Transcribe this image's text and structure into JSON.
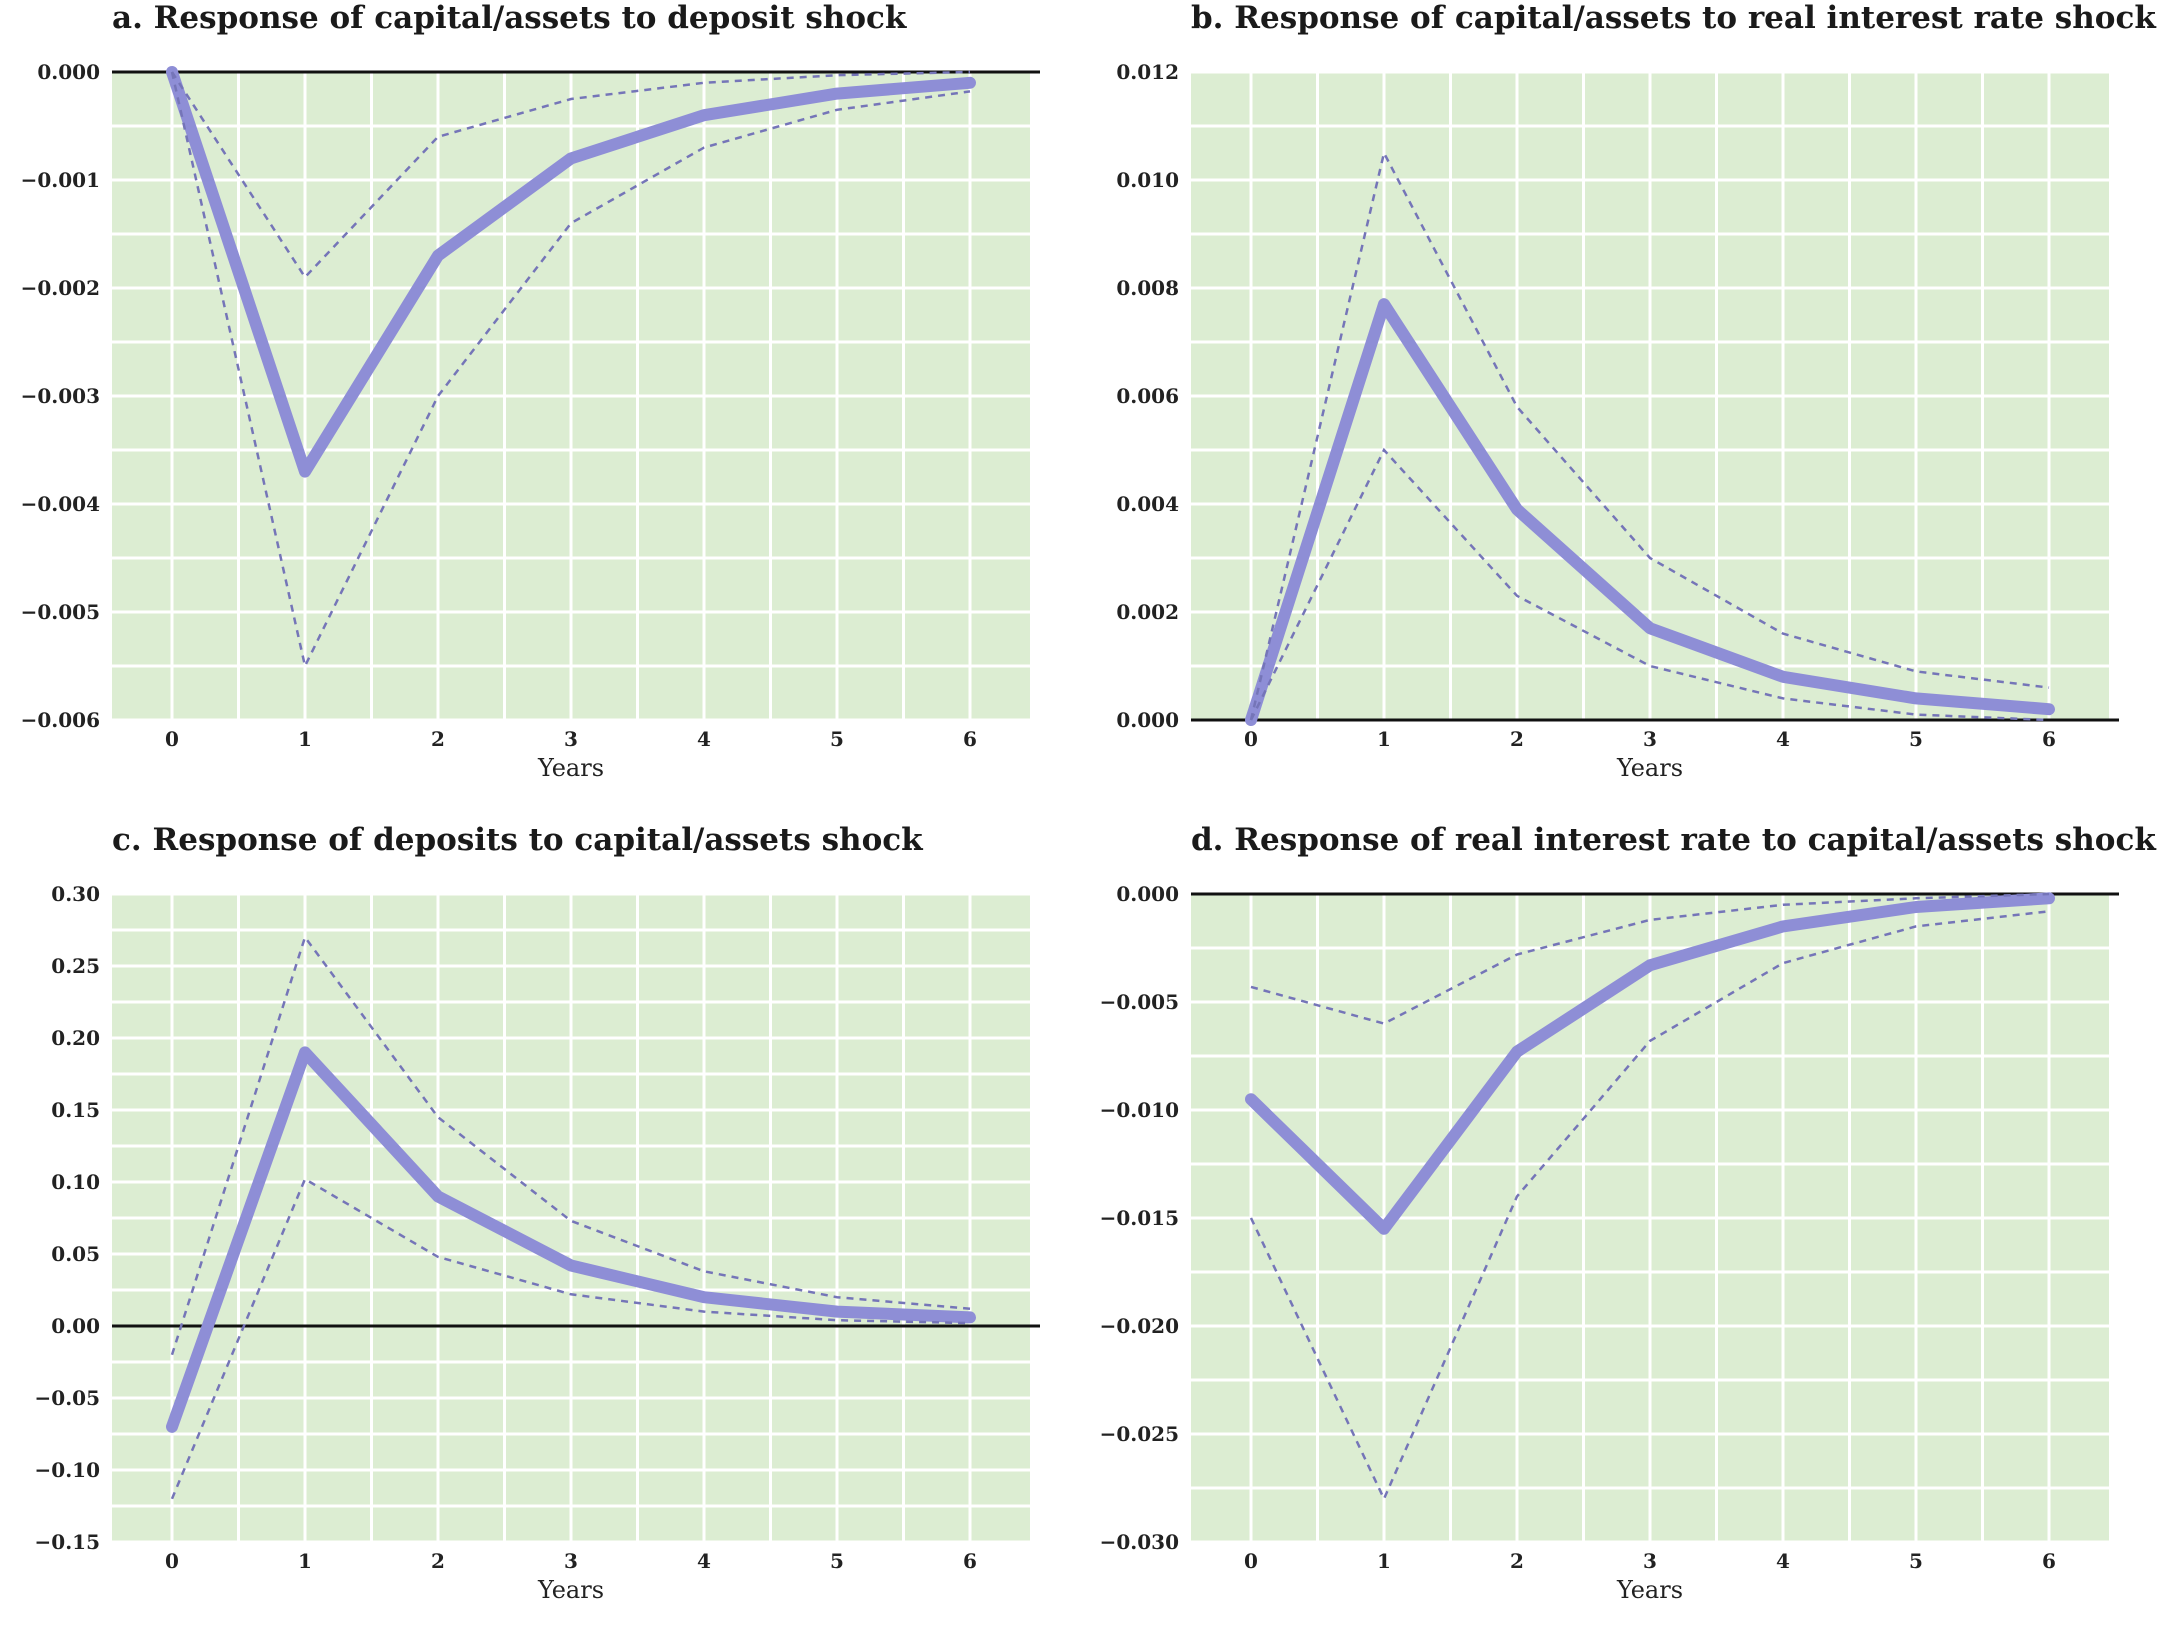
{
  "chart_data": [
    {
      "type": "line",
      "title": "a. Response of capital/assets to deposit shock",
      "xlabel": "Years",
      "ylabel": "",
      "x": [
        0,
        1,
        2,
        3,
        4,
        5,
        6
      ],
      "xticks": [
        "0",
        "1",
        "2",
        "3",
        "4",
        "5",
        "6"
      ],
      "ylim": [
        -0.006,
        0.0
      ],
      "yticks": [
        "0.000",
        "-0.001",
        "-0.002",
        "-0.003",
        "-0.004",
        "-0.005",
        "-0.006"
      ],
      "zero_line": true,
      "series": [
        {
          "role": "response",
          "values": [
            0.0,
            -0.0037,
            -0.0017,
            -0.0008,
            -0.0004,
            -0.0002,
            -0.0001
          ]
        },
        {
          "role": "upper_band",
          "values": [
            0.0,
            -0.0019,
            -0.0006,
            -0.00025,
            -0.0001,
            -3e-05,
            0.0
          ]
        },
        {
          "role": "lower_band",
          "values": [
            0.0,
            -0.0055,
            -0.003,
            -0.0014,
            -0.0007,
            -0.00035,
            -0.00018
          ]
        }
      ]
    },
    {
      "type": "line",
      "title": "b. Response of capital/assets to real interest rate shock",
      "xlabel": "Years",
      "ylabel": "",
      "x": [
        0,
        1,
        2,
        3,
        4,
        5,
        6
      ],
      "xticks": [
        "0",
        "1",
        "2",
        "3",
        "4",
        "5",
        "6"
      ],
      "ylim": [
        0.0,
        0.012
      ],
      "yticks": [
        "0.012",
        "0.010",
        "0.008",
        "0.006",
        "0.004",
        "0.002",
        "0.000"
      ],
      "zero_line": true,
      "series": [
        {
          "role": "response",
          "values": [
            0.0,
            0.0077,
            0.0039,
            0.0017,
            0.0008,
            0.0004,
            0.0002
          ]
        },
        {
          "role": "upper_band",
          "values": [
            0.0,
            0.0105,
            0.0058,
            0.003,
            0.0016,
            0.0009,
            0.0006
          ]
        },
        {
          "role": "lower_band",
          "values": [
            0.0,
            0.005,
            0.0023,
            0.001,
            0.0004,
            0.0001,
            0.0
          ]
        }
      ]
    },
    {
      "type": "line",
      "title": "c. Response of deposits to capital/assets shock",
      "xlabel": "Years",
      "ylabel": "",
      "x": [
        0,
        1,
        2,
        3,
        4,
        5,
        6
      ],
      "xticks": [
        "0",
        "1",
        "2",
        "3",
        "4",
        "5",
        "6"
      ],
      "ylim": [
        -0.15,
        0.3
      ],
      "yticks": [
        "0.30",
        "0.25",
        "0.20",
        "0.15",
        "0.10",
        "0.05",
        "0.00",
        "-0.05",
        "-0.10",
        "-0.15"
      ],
      "zero_line": true,
      "series": [
        {
          "role": "response",
          "values": [
            -0.07,
            0.19,
            0.09,
            0.042,
            0.02,
            0.01,
            0.006
          ]
        },
        {
          "role": "upper_band",
          "values": [
            -0.02,
            0.27,
            0.145,
            0.073,
            0.038,
            0.02,
            0.012
          ]
        },
        {
          "role": "lower_band",
          "values": [
            -0.12,
            0.102,
            0.048,
            0.022,
            0.01,
            0.004,
            0.002
          ]
        }
      ]
    },
    {
      "type": "line",
      "title": "d. Response of real interest rate to capital/assets shock",
      "xlabel": "Years",
      "ylabel": "",
      "x": [
        0,
        1,
        2,
        3,
        4,
        5,
        6
      ],
      "xticks": [
        "0",
        "1",
        "2",
        "3",
        "4",
        "5",
        "6"
      ],
      "ylim": [
        -0.03,
        0.0
      ],
      "yticks": [
        "0.000",
        "-0.005",
        "-0.010",
        "-0.015",
        "-0.020",
        "-0.025",
        "-0.030"
      ],
      "zero_line": true,
      "series": [
        {
          "role": "response",
          "values": [
            -0.0095,
            -0.0155,
            -0.0073,
            -0.0033,
            -0.0015,
            -0.0006,
            -0.0002
          ]
        },
        {
          "role": "upper_band",
          "values": [
            -0.0043,
            -0.006,
            -0.0028,
            -0.0012,
            -0.0005,
            -0.0002,
            0.0
          ]
        },
        {
          "role": "lower_band",
          "values": [
            -0.015,
            -0.028,
            -0.014,
            -0.0068,
            -0.0032,
            -0.0015,
            -0.0008
          ]
        }
      ]
    }
  ],
  "colors": {
    "plot_background": "#dcedd2",
    "grid": "#ffffff",
    "response_line": "#8e8ed6",
    "band_line": "#7575b8",
    "zero_line": "#111111"
  }
}
